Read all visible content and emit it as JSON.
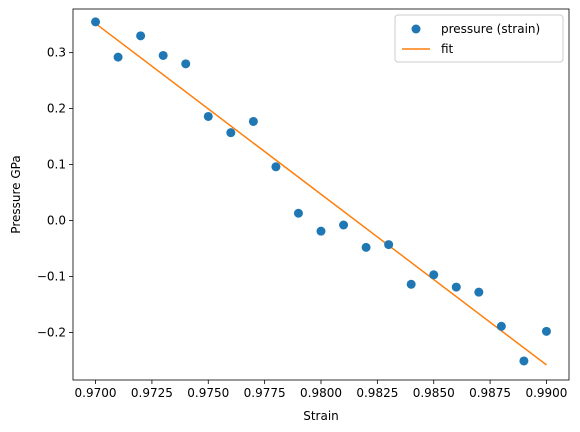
{
  "chart_data": {
    "type": "scatter",
    "xlabel": "Strain",
    "ylabel": "Pressure GPa",
    "xlim": [
      0.969,
      0.991
    ],
    "ylim": [
      -0.285,
      0.378
    ],
    "x_ticks": [
      0.97,
      0.9725,
      0.975,
      0.9775,
      0.98,
      0.9825,
      0.985,
      0.9875,
      0.99
    ],
    "x_tick_labels": [
      "0.9700",
      "0.9725",
      "0.9750",
      "0.9775",
      "0.9800",
      "0.9825",
      "0.9850",
      "0.9875",
      "0.9900"
    ],
    "y_ticks": [
      -0.2,
      -0.1,
      0.0,
      0.1,
      0.2,
      0.3
    ],
    "y_tick_labels": [
      "−0.2",
      "−0.1",
      "0.0",
      "0.1",
      "0.2",
      "0.3"
    ],
    "grid": false,
    "legend_position": "top-right",
    "series": [
      {
        "name": "pressure (strain)",
        "type": "scatter",
        "color": "#1f77b4",
        "x": [
          0.97,
          0.971,
          0.972,
          0.973,
          0.974,
          0.975,
          0.976,
          0.977,
          0.978,
          0.979,
          0.98,
          0.981,
          0.982,
          0.983,
          0.984,
          0.985,
          0.986,
          0.987,
          0.988,
          0.989,
          0.99
        ],
        "y": [
          0.355,
          0.292,
          0.33,
          0.295,
          0.28,
          0.186,
          0.157,
          0.177,
          0.096,
          0.013,
          -0.019,
          -0.008,
          -0.048,
          -0.043,
          -0.114,
          -0.097,
          -0.119,
          -0.128,
          -0.189,
          -0.251,
          -0.198
        ]
      },
      {
        "name": "fit",
        "type": "line",
        "color": "#ff7f0e",
        "x": [
          0.97,
          0.99
        ],
        "y": [
          0.352,
          -0.258
        ]
      }
    ]
  }
}
